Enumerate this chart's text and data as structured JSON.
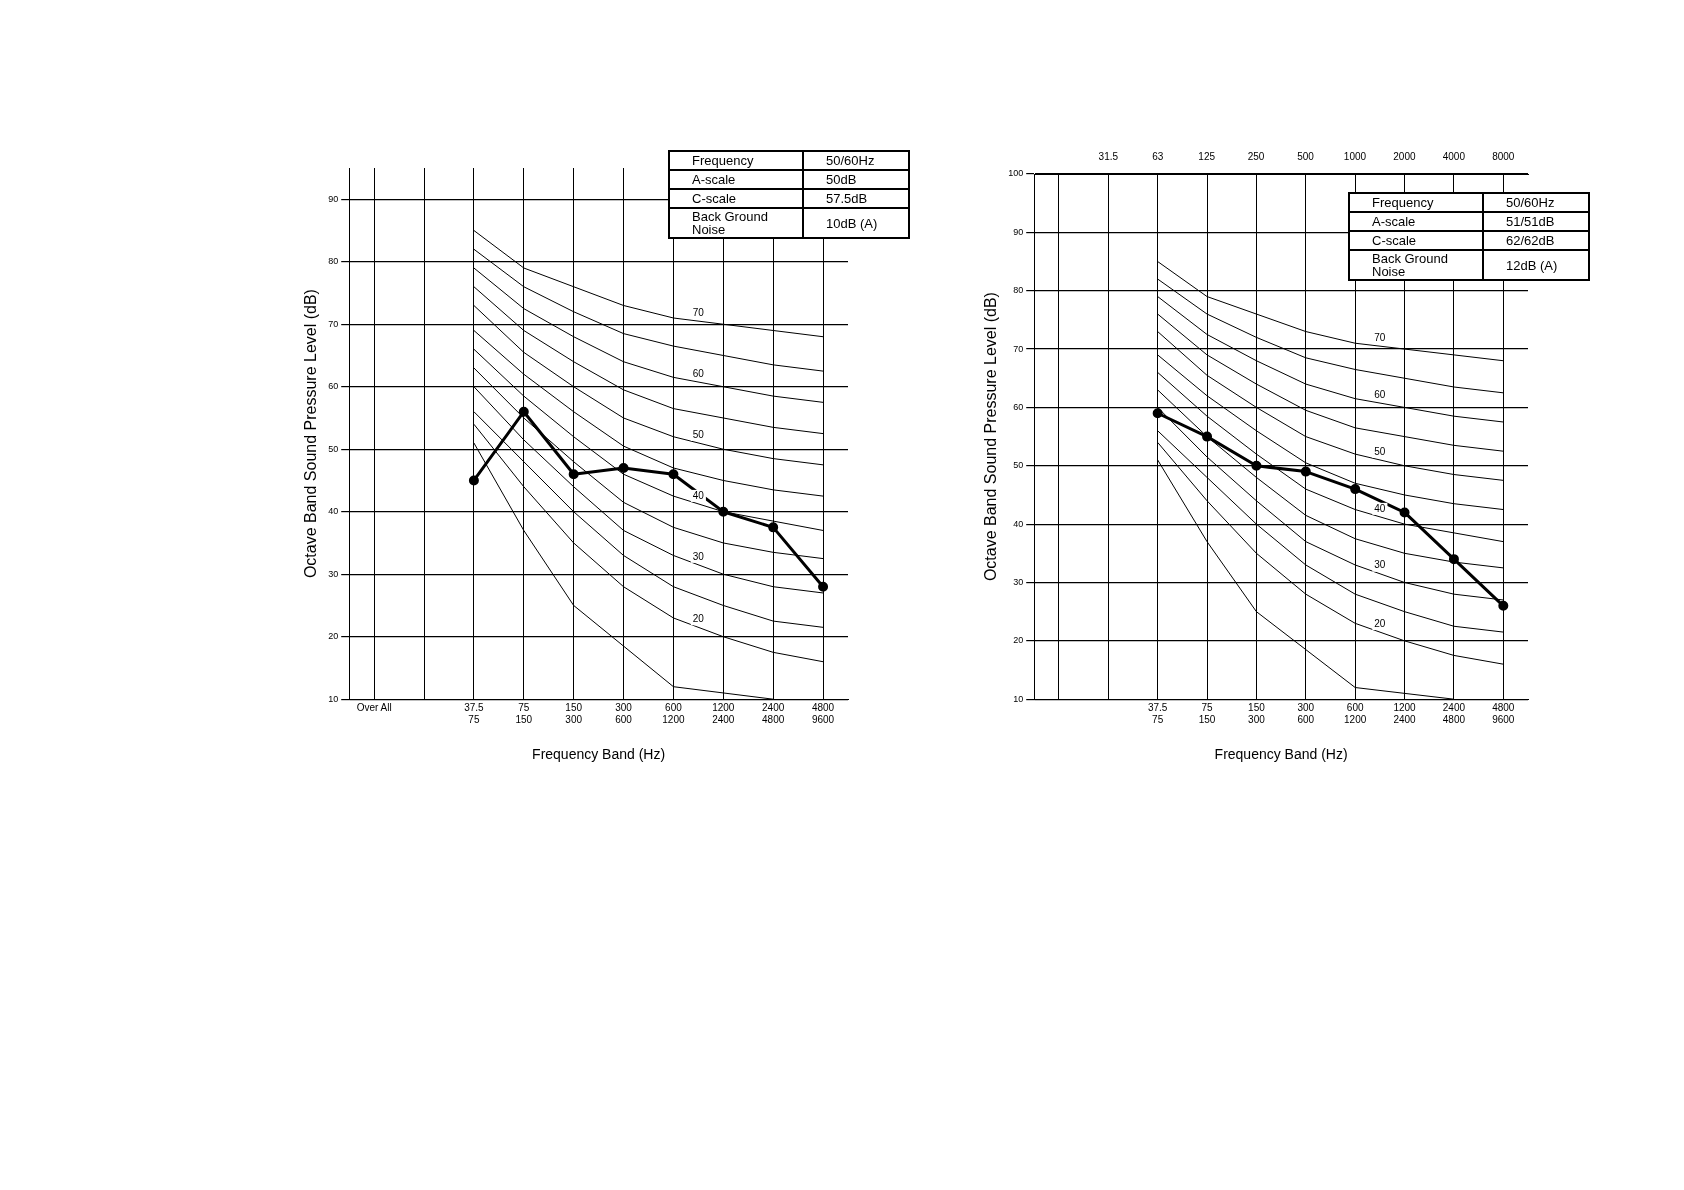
{
  "chart_data": [
    {
      "type": "line",
      "xlabel": "Frequency Band (Hz)",
      "ylabel": "Octave Band Sound Pressure Level (dB)",
      "categories": [
        "Over All",
        null,
        "37.5\n75",
        "75\n150",
        "150\n300",
        "300\n600",
        "600\n1200",
        "1200\n2400",
        "2400\n4800",
        "4800\n9600"
      ],
      "ylim": [
        10,
        95
      ],
      "yticks": [
        10,
        20,
        30,
        40,
        50,
        60,
        70,
        80,
        90
      ],
      "grid": true,
      "legend": false,
      "series": [
        {
          "name": "70",
          "color": "#000000",
          "values": [
            null,
            null,
            85,
            79,
            76,
            73,
            71,
            70,
            69,
            68
          ]
        },
        {
          "color": "#000000",
          "values": [
            null,
            null,
            82,
            76,
            72,
            68.5,
            66.5,
            65,
            63.5,
            62.5
          ]
        },
        {
          "name": "60",
          "color": "#000000",
          "values": [
            null,
            null,
            79,
            72.5,
            68,
            64,
            61.5,
            60,
            58.5,
            57.5
          ]
        },
        {
          "color": "#000000",
          "values": [
            null,
            null,
            76,
            69,
            64,
            59.5,
            56.5,
            55,
            53.5,
            52.5
          ]
        },
        {
          "name": "50",
          "color": "#000000",
          "values": [
            null,
            null,
            73,
            65.5,
            60,
            55,
            52,
            50,
            48.5,
            47.5
          ]
        },
        {
          "color": "#000000",
          "values": [
            null,
            null,
            69,
            62,
            56,
            50.5,
            47,
            45,
            43.5,
            42.5
          ]
        },
        {
          "name": "40",
          "color": "#000000",
          "values": [
            null,
            null,
            66,
            58.5,
            52,
            46,
            42.5,
            40,
            38.5,
            37
          ]
        },
        {
          "color": "#000000",
          "values": [
            null,
            null,
            63,
            55,
            48,
            41.5,
            37.5,
            35,
            33.5,
            32.5
          ]
        },
        {
          "name": "30",
          "color": "#000000",
          "values": [
            null,
            null,
            60,
            51.5,
            44,
            37,
            33,
            30,
            28,
            27
          ]
        },
        {
          "color": "#000000",
          "values": [
            null,
            null,
            56,
            48,
            40,
            33,
            28,
            25,
            22.5,
            21.5
          ]
        },
        {
          "name": "20",
          "color": "#000000",
          "values": [
            null,
            null,
            54,
            44,
            35,
            28,
            23,
            20,
            17.5,
            16
          ]
        },
        {
          "color": "#000000",
          "values": [
            null,
            null,
            51,
            37,
            25,
            18.5,
            12,
            11,
            10,
            null
          ]
        },
        {
          "color": "#000000",
          "marker": "circle",
          "values": [
            null,
            null,
            45,
            56,
            46,
            47,
            46,
            40,
            37.5,
            28
          ]
        }
      ],
      "annotations": [
        "Frequency",
        "50/60Hz",
        "A-scale",
        "50dB",
        "C-scale",
        "57.5dB",
        "Back Ground\nNoise",
        "10dB (A)"
      ]
    },
    {
      "type": "line",
      "xlabel": "Frequency Band (Hz)",
      "ylabel": "Octave Band Sound Pressure Level (dB)",
      "categories": [
        null,
        null,
        "37.5\n75",
        "75\n150",
        "150\n300",
        "300\n600",
        "600\n1200",
        "1200\n2400",
        "2400\n4800",
        "4800\n9600"
      ],
      "ylim": [
        10,
        100
      ],
      "yticks": [
        10,
        20,
        30,
        40,
        50,
        60,
        70,
        80,
        90,
        100
      ],
      "log": "x2",
      "x2lim": [
        11.14,
        11314
      ],
      "x2ticks": [
        31.5,
        63,
        125,
        250,
        500,
        1000,
        2000,
        4000,
        8000
      ],
      "grid": true,
      "legend": false,
      "series": [
        {
          "name": "70",
          "color": "#000000",
          "values": [
            null,
            null,
            85,
            79,
            76,
            73,
            71,
            70,
            69,
            68
          ]
        },
        {
          "color": "#000000",
          "values": [
            null,
            null,
            82,
            76,
            72,
            68.5,
            66.5,
            65,
            63.5,
            62.5
          ]
        },
        {
          "name": "60",
          "color": "#000000",
          "values": [
            null,
            null,
            79,
            72.5,
            68,
            64,
            61.5,
            60,
            58.5,
            57.5
          ]
        },
        {
          "color": "#000000",
          "values": [
            null,
            null,
            76,
            69,
            64,
            59.5,
            56.5,
            55,
            53.5,
            52.5
          ]
        },
        {
          "name": "50",
          "color": "#000000",
          "values": [
            null,
            null,
            73,
            65.5,
            60,
            55,
            52,
            50,
            48.5,
            47.5
          ]
        },
        {
          "color": "#000000",
          "values": [
            null,
            null,
            69,
            62,
            56,
            50.5,
            47,
            45,
            43.5,
            42.5
          ]
        },
        {
          "name": "40",
          "color": "#000000",
          "values": [
            null,
            null,
            66,
            58.5,
            52,
            46,
            42.5,
            40,
            38.5,
            37
          ]
        },
        {
          "color": "#000000",
          "values": [
            null,
            null,
            63,
            55,
            48,
            41.5,
            37.5,
            35,
            33.5,
            32.5
          ]
        },
        {
          "name": "30",
          "color": "#000000",
          "values": [
            null,
            null,
            60,
            51.5,
            44,
            37,
            33,
            30,
            28,
            27
          ]
        },
        {
          "color": "#000000",
          "values": [
            null,
            null,
            56,
            48,
            40,
            33,
            28,
            25,
            22.5,
            21.5
          ]
        },
        {
          "name": "20",
          "color": "#000000",
          "values": [
            null,
            null,
            54,
            44,
            35,
            28,
            23,
            20,
            17.5,
            16
          ]
        },
        {
          "color": "#000000",
          "values": [
            null,
            null,
            51,
            37,
            25,
            18.5,
            12,
            11,
            10,
            null
          ]
        },
        {
          "color": "#000000",
          "marker": "circle",
          "values": [
            null,
            null,
            59,
            55,
            50,
            49,
            46,
            42,
            34,
            26
          ]
        }
      ],
      "annotations": [
        "Frequency",
        "50/60Hz",
        "A-scale",
        "51/51dB",
        "C-scale",
        "62/62dB",
        "Back Ground\nNoise",
        "12dB (A)"
      ]
    }
  ]
}
